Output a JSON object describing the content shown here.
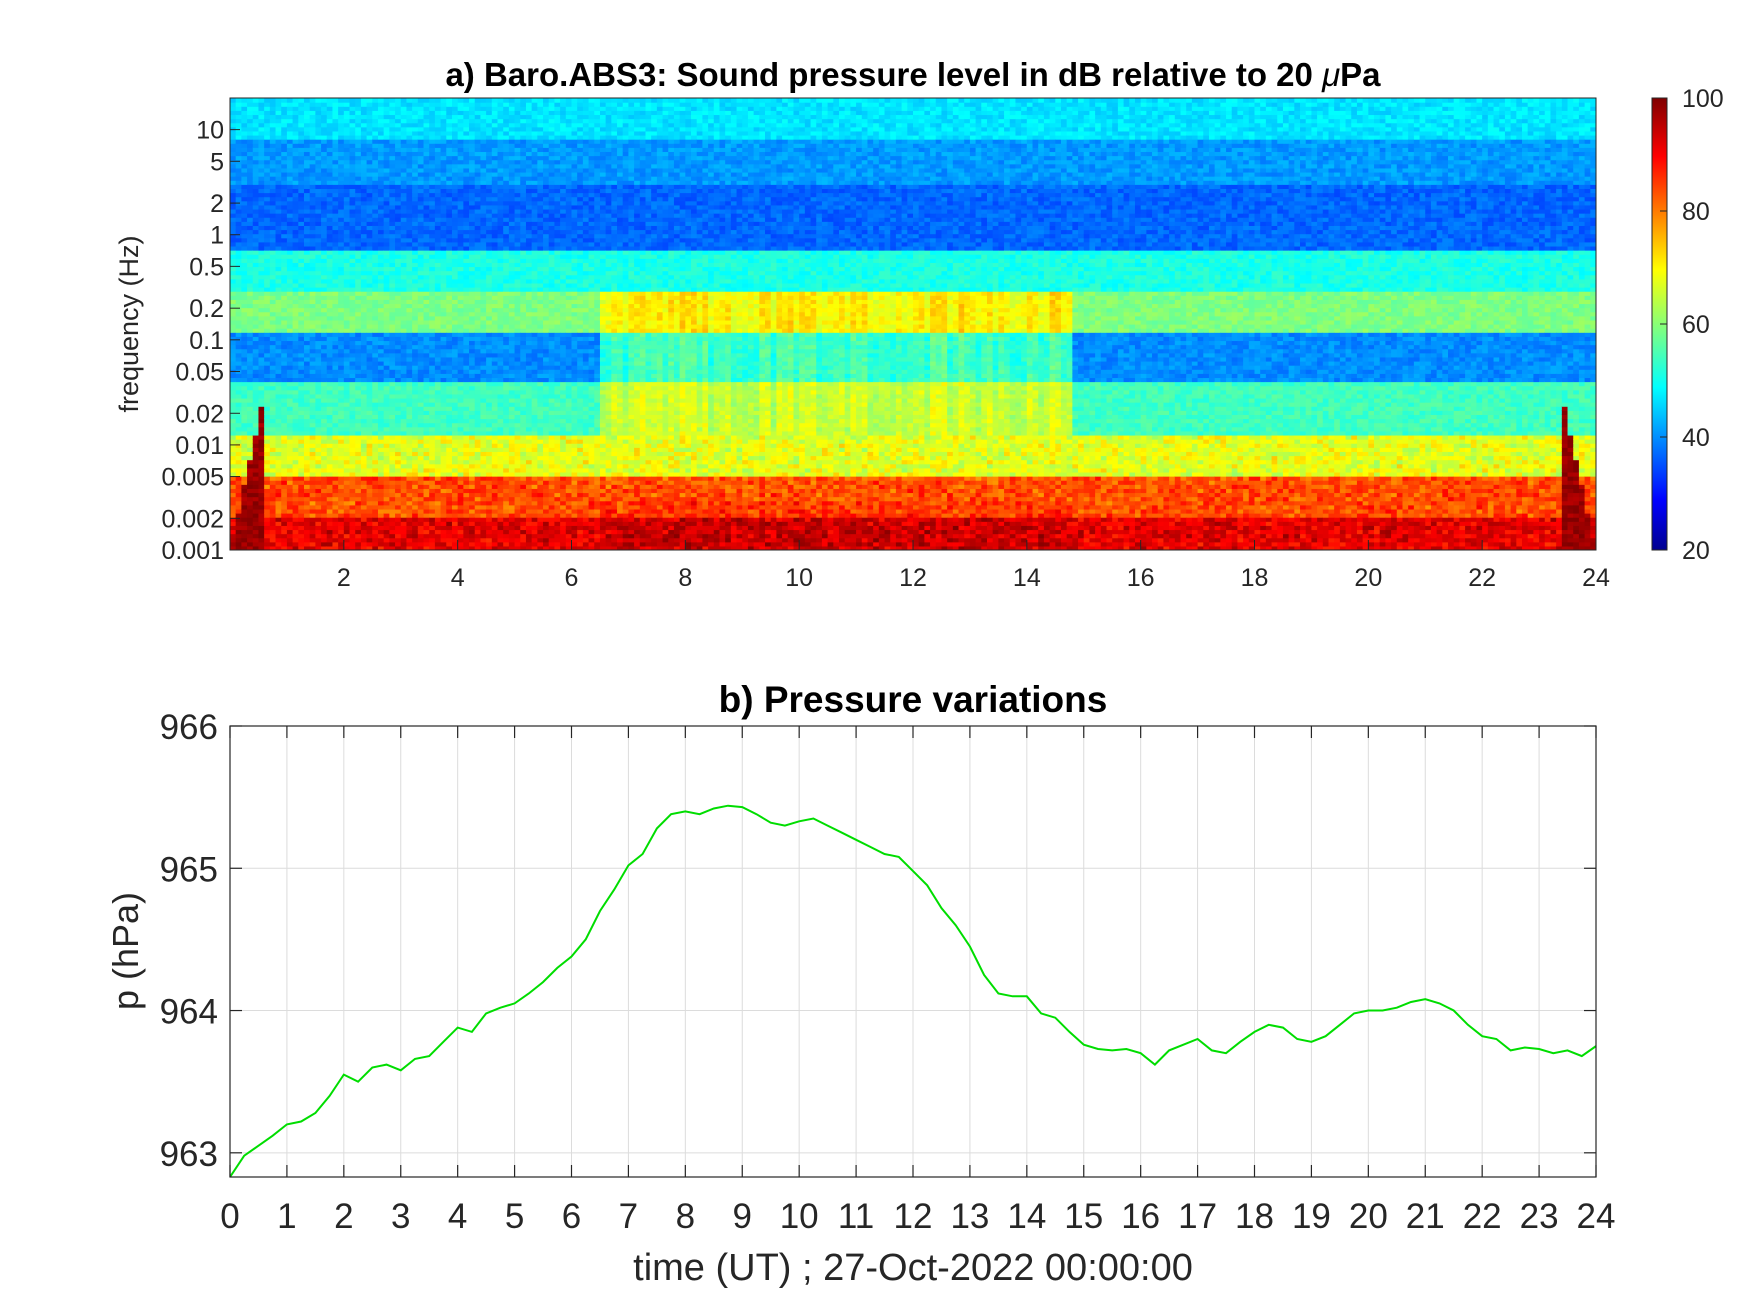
{
  "chart_data": [
    {
      "type": "heatmap",
      "title": "a) Baro.ABS3: Sound pressure level in dB relative to 20 μPa",
      "title_main": "a) Baro.ABS3: Sound pressure level in dB relative to 20 ",
      "title_mu": "μ",
      "title_unit": "Pa",
      "xlabel": "",
      "ylabel": "frequency (Hz)",
      "xlim": [
        0,
        24
      ],
      "ylim": [
        0.001,
        20
      ],
      "yscale": "log",
      "x_ticks": [
        "2",
        "4",
        "6",
        "8",
        "10",
        "12",
        "14",
        "16",
        "18",
        "20",
        "22",
        "24"
      ],
      "x_tick_values": [
        2,
        4,
        6,
        8,
        10,
        12,
        14,
        16,
        18,
        20,
        22,
        24
      ],
      "y_ticks": [
        "10",
        "5",
        "2",
        "1",
        "0.5",
        "0.2",
        "0.1",
        "0.05",
        "0.02",
        "0.01",
        "0.005",
        "0.002",
        "0.001"
      ],
      "y_tick_values": [
        10,
        5,
        2,
        1,
        0.5,
        0.2,
        0.1,
        0.05,
        0.02,
        0.01,
        0.005,
        0.002,
        0.001
      ],
      "colormap": "jet",
      "colorbar": {
        "range": [
          20,
          100
        ],
        "ticks": [
          "100",
          "80",
          "60",
          "40",
          "20"
        ],
        "tick_values": [
          100,
          80,
          60,
          40,
          20
        ]
      },
      "band_levels_db": [
        {
          "f_low": 8,
          "f_high": 20,
          "level": 48
        },
        {
          "f_low": 3,
          "f_high": 8,
          "level": 42
        },
        {
          "f_low": 0.7,
          "f_high": 3,
          "level": 38
        },
        {
          "f_low": 0.3,
          "f_high": 0.7,
          "level": 52
        },
        {
          "f_low": 0.12,
          "f_high": 0.3,
          "level": 60
        },
        {
          "f_low": 0.04,
          "f_high": 0.12,
          "level": 44
        },
        {
          "f_low": 0.012,
          "f_high": 0.04,
          "level": 55
        },
        {
          "f_low": 0.005,
          "f_high": 0.012,
          "level": 68
        },
        {
          "f_low": 0.002,
          "f_high": 0.005,
          "level": 84
        },
        {
          "f_low": 0.001,
          "f_high": 0.002,
          "level": 92
        }
      ],
      "active_period_hours": [
        6.5,
        14.8
      ]
    },
    {
      "type": "line",
      "title": "b) Pressure variations",
      "xlabel": "time (UT) ; 27-Oct-2022 00:00:00",
      "ylabel": "p (hPa)",
      "xlim": [
        0,
        24
      ],
      "ylim": [
        962.83,
        966
      ],
      "grid": true,
      "x_ticks": [
        "0",
        "1",
        "2",
        "3",
        "4",
        "5",
        "6",
        "7",
        "8",
        "9",
        "10",
        "11",
        "12",
        "13",
        "14",
        "15",
        "16",
        "17",
        "18",
        "19",
        "20",
        "21",
        "22",
        "23",
        "24"
      ],
      "y_ticks": [
        "963",
        "964",
        "965",
        "966"
      ],
      "y_tick_values": [
        963,
        964,
        965,
        966
      ],
      "series": [
        {
          "color": "#00dd00",
          "x": [
            0,
            0.25,
            0.5,
            0.75,
            1,
            1.25,
            1.5,
            1.75,
            2,
            2.25,
            2.5,
            2.75,
            3,
            3.25,
            3.5,
            3.75,
            4,
            4.25,
            4.5,
            4.75,
            5,
            5.25,
            5.5,
            5.75,
            6,
            6.25,
            6.5,
            6.75,
            7,
            7.25,
            7.5,
            7.75,
            8,
            8.25,
            8.5,
            8.75,
            9,
            9.25,
            9.5,
            9.75,
            10,
            10.25,
            10.5,
            10.75,
            11,
            11.25,
            11.5,
            11.75,
            12,
            12.25,
            12.5,
            12.75,
            13,
            13.25,
            13.5,
            13.75,
            14,
            14.25,
            14.5,
            14.75,
            15,
            15.25,
            15.5,
            15.75,
            16,
            16.25,
            16.5,
            16.75,
            17,
            17.25,
            17.5,
            17.75,
            18,
            18.25,
            18.5,
            18.75,
            19,
            19.25,
            19.5,
            19.75,
            20,
            20.25,
            20.5,
            20.75,
            21,
            21.25,
            21.5,
            21.75,
            22,
            22.25,
            22.5,
            22.75,
            23,
            23.25,
            23.5,
            23.75,
            24
          ],
          "y": [
            962.83,
            962.98,
            963.05,
            963.12,
            963.2,
            963.22,
            963.28,
            963.4,
            963.55,
            963.5,
            963.6,
            963.62,
            963.58,
            963.66,
            963.68,
            963.78,
            963.88,
            963.85,
            963.98,
            964.02,
            964.05,
            964.12,
            964.2,
            964.3,
            964.38,
            964.5,
            964.7,
            964.85,
            965.02,
            965.1,
            965.28,
            965.38,
            965.4,
            965.38,
            965.42,
            965.44,
            965.43,
            965.38,
            965.32,
            965.3,
            965.33,
            965.35,
            965.3,
            965.25,
            965.2,
            965.15,
            965.1,
            965.08,
            964.98,
            964.88,
            964.72,
            964.6,
            964.45,
            964.25,
            964.12,
            964.1,
            964.1,
            963.98,
            963.95,
            963.85,
            963.76,
            963.73,
            963.72,
            963.73,
            963.7,
            963.62,
            963.72,
            963.76,
            963.8,
            963.72,
            963.7,
            963.78,
            963.85,
            963.9,
            963.88,
            963.8,
            963.78,
            963.82,
            963.9,
            963.98,
            964.0,
            964.0,
            964.02,
            964.06,
            964.08,
            964.05,
            964.0,
            963.9,
            963.82,
            963.8,
            963.72,
            963.74,
            963.73,
            963.7,
            963.72,
            963.68,
            963.75
          ]
        }
      ]
    }
  ]
}
